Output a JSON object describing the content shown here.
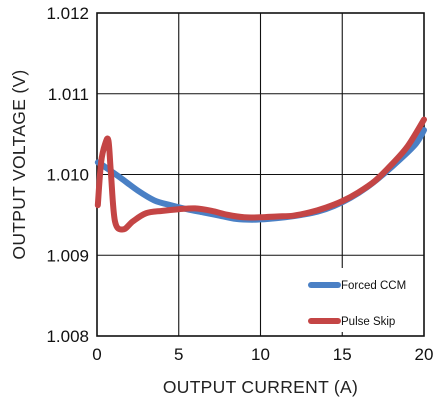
{
  "chart_data": {
    "type": "line",
    "xlabel": "OUTPUT CURRENT (A)",
    "ylabel": "OUTPUT VOLTAGE (V)",
    "xlim": [
      0,
      20
    ],
    "ylim": [
      1.008,
      1.012
    ],
    "xticks": [
      "0",
      "5",
      "10",
      "15",
      "20"
    ],
    "yticks": [
      "1.008",
      "1.009",
      "1.010",
      "1.011",
      "1.012"
    ],
    "grid": true,
    "legend_position": "bottom-right",
    "series": [
      {
        "name": "Forced CCM",
        "color": "#4a80c5",
        "x": [
          0.05,
          0.3,
          0.8,
          1.5,
          2.5,
          3.5,
          4.5,
          5.5,
          6.5,
          7.5,
          8.5,
          9.5,
          10.5,
          11.5,
          12.5,
          13.5,
          14.5,
          15.5,
          16.5,
          17.5,
          18.5,
          19.5,
          20.0
        ],
        "y": [
          1.01015,
          1.01012,
          1.01005,
          1.00995,
          1.0098,
          1.00968,
          1.00962,
          1.00957,
          1.00953,
          1.00949,
          1.00945,
          1.00944,
          1.00945,
          1.00947,
          1.0095,
          1.00954,
          1.00961,
          1.00971,
          1.00984,
          1.01,
          1.01018,
          1.01038,
          1.01055
        ]
      },
      {
        "name": "Pulse Skip",
        "color": "#c44545",
        "x": [
          0.05,
          0.25,
          0.5,
          0.7,
          0.85,
          1.1,
          1.6,
          2.2,
          3.0,
          4.0,
          5.0,
          6.0,
          7.0,
          8.0,
          9.0,
          10.0,
          11.0,
          12.0,
          13.0,
          14.0,
          15.0,
          16.0,
          17.0,
          18.0,
          19.0,
          20.0
        ],
        "y": [
          1.00962,
          1.01015,
          1.01038,
          1.01042,
          1.01002,
          1.00942,
          1.00932,
          1.00942,
          1.00952,
          1.00955,
          1.00957,
          1.00958,
          1.00955,
          1.0095,
          1.00947,
          1.00947,
          1.00948,
          1.00949,
          1.00953,
          1.00959,
          1.00967,
          1.00978,
          1.00992,
          1.01012,
          1.01035,
          1.01068
        ]
      }
    ]
  }
}
